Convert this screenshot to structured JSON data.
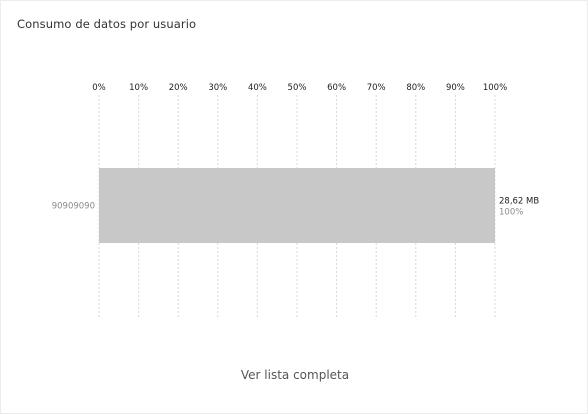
{
  "title": "Consumo de datos por usuario",
  "footer_link": "Ver lista completa",
  "colors": {
    "bar": "#c8c8c8",
    "grid": "#d7d7d7"
  },
  "chart_data": {
    "type": "bar",
    "orientation": "horizontal",
    "title": "Consumo de datos por usuario",
    "x_ticks": [
      "0%",
      "10%",
      "20%",
      "30%",
      "40%",
      "50%",
      "60%",
      "70%",
      "80%",
      "90%",
      "100%"
    ],
    "xlim": [
      0,
      100
    ],
    "grid": true,
    "categories": [
      "90909090"
    ],
    "values": [
      100
    ],
    "value_labels": [
      "28,62 MB"
    ],
    "percent_labels": [
      "100%"
    ]
  }
}
